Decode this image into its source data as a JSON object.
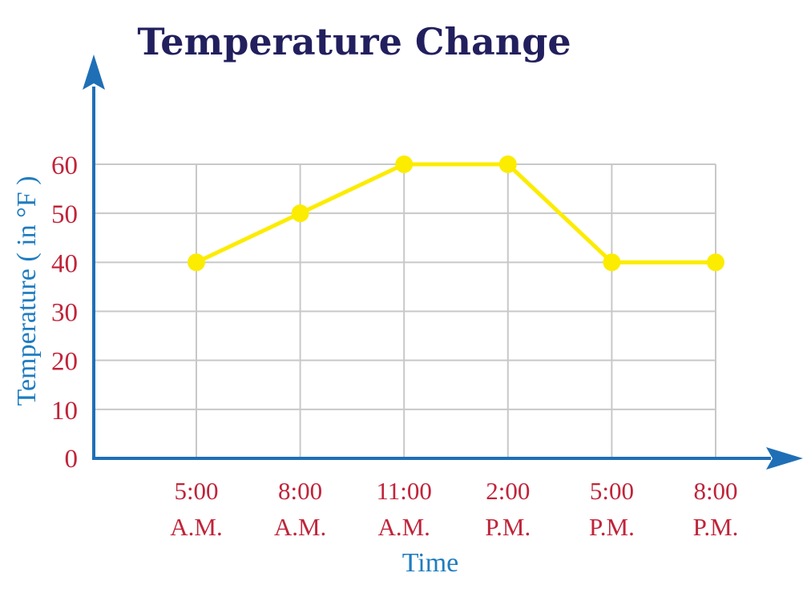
{
  "chart_data": {
    "type": "line",
    "title": "Temperature Change",
    "xlabel": "Time",
    "ylabel": "Temperature ( in °F )",
    "categories": [
      [
        "5:00",
        "A.M."
      ],
      [
        "8:00",
        "A.M."
      ],
      [
        "11:00",
        "A.M."
      ],
      [
        "2:00",
        "P.M."
      ],
      [
        "5:00",
        "P.M."
      ],
      [
        "8:00",
        "P.M."
      ]
    ],
    "values": [
      40,
      50,
      60,
      60,
      40,
      40
    ],
    "y_ticks": [
      "0",
      "10",
      "20",
      "30",
      "40",
      "50",
      "60"
    ],
    "ylim": [
      0,
      60
    ],
    "grid": true,
    "colors": {
      "title": "#221f5e",
      "axis": "#1f6fb6",
      "axis_label": "#1f7cc0",
      "tick_label": "#c0243a",
      "grid": "#c8c8c8",
      "series": "#fcec00"
    }
  }
}
